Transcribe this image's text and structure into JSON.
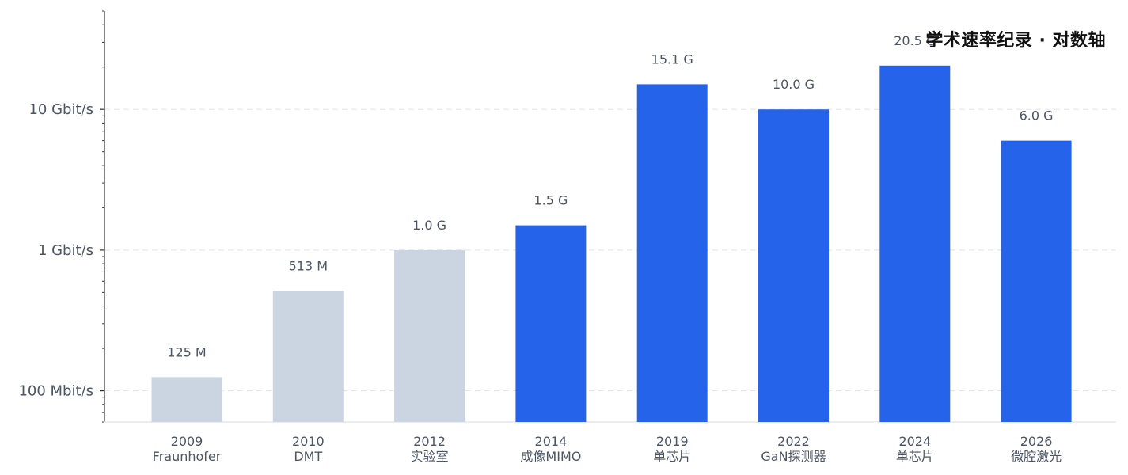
{
  "chart_data": {
    "type": "bar",
    "title": "学术速率纪录 · 对数轴",
    "xlabel": "",
    "ylabel": "",
    "yscale": "log",
    "ylim_mbit": [
      60,
      50000
    ],
    "grid": true,
    "y_ticks": [
      {
        "value_mbit": 100,
        "label": "100 Mbit/s"
      },
      {
        "value_mbit": 1000,
        "label": "1 Gbit/s"
      },
      {
        "value_mbit": 10000,
        "label": "10 Gbit/s"
      }
    ],
    "bars": [
      {
        "year": "2009",
        "name": "Fraunhofer",
        "value_mbit": 125,
        "label": "125 M",
        "color": "#cbd5e1"
      },
      {
        "year": "2010",
        "name": "DMT",
        "value_mbit": 513,
        "label": "513 M",
        "color": "#cbd5e1"
      },
      {
        "year": "2012",
        "name": "实验室",
        "value_mbit": 1000,
        "label": "1.0 G",
        "color": "#cbd5e1"
      },
      {
        "year": "2014",
        "name": "成像MIMO",
        "value_mbit": 1500,
        "label": "1.5 G",
        "color": "#2563eb"
      },
      {
        "year": "2019",
        "name": "单芯片",
        "value_mbit": 15100,
        "label": "15.1 G",
        "color": "#2563eb"
      },
      {
        "year": "2022",
        "name": "GaN探测器",
        "value_mbit": 10000,
        "label": "10.0 G",
        "color": "#2563eb"
      },
      {
        "year": "2024",
        "name": "单芯片",
        "value_mbit": 20500,
        "label": "20.5 G",
        "color": "#2563eb"
      },
      {
        "year": "2026",
        "name": "微腔激光",
        "value_mbit": 6000,
        "label": "6.0 G",
        "color": "#2563eb"
      }
    ]
  }
}
